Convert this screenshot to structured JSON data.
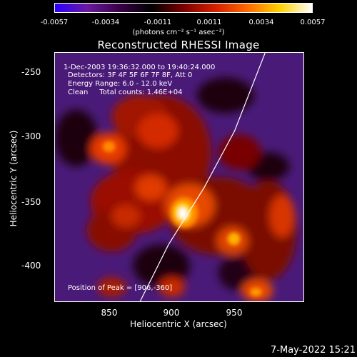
{
  "colorbar": {
    "ticks": [
      "-0.0057",
      "-0.0034",
      "-0.0011",
      "0.0011",
      "0.0034",
      "0.0057"
    ],
    "units": "(photons cm⁻² s⁻¹ asec⁻²)"
  },
  "title": "Reconstructed RHESSI Image",
  "info": {
    "time": "1-Dec-2003 19:36:32.000 to 19:40:24.000",
    "detectors": "Detectors: 3F 4F 5F 6F 7F 8F, Att 0",
    "energy": "Energy Range: 6.0 - 12.0 keV",
    "clean": "Clean     Total counts: 1.46E+04",
    "peak": "Position of Peak = [906,-360]"
  },
  "axes": {
    "xlabel": "Heliocentric X (arcsec)",
    "ylabel": "Heliocentric Y (arcsec)",
    "xticks": [
      "850",
      "900",
      "950"
    ],
    "yticks": [
      "-250",
      "-300",
      "-350",
      "-400"
    ]
  },
  "footer": {
    "date": "7-May-2022 15:21"
  },
  "image": {
    "colormap": [
      "#2a00ff",
      "#6a1aa0",
      "#3a0048",
      "#000000",
      "#7a0000",
      "#d42000",
      "#ff6a00",
      "#ffd200",
      "#ffffff"
    ]
  }
}
